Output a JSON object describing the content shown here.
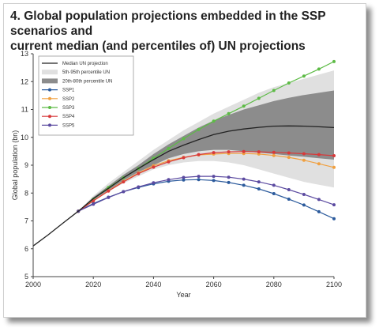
{
  "title": {
    "line1": "4. Global population projections embedded in the SSP scenarios and",
    "line2": "current median (and percentiles of) UN projections"
  },
  "chart_data": {
    "type": "line",
    "xlabel": "Year",
    "ylabel": "Global population (bn)",
    "xlim": [
      2000,
      2100
    ],
    "ylim": [
      5,
      13
    ],
    "x_ticks": [
      "2000",
      "2020",
      "2040",
      "2060",
      "2080",
      "2100"
    ],
    "y_ticks": [
      "5",
      "6",
      "7",
      "8",
      "9",
      "10",
      "11",
      "12",
      "13"
    ],
    "grid": false,
    "legend_position": "top-left",
    "un_median": {
      "name": "Median UN projection",
      "color": "#222222",
      "x": [
        2000,
        2005,
        2010,
        2015,
        2020,
        2025,
        2030,
        2035,
        2040,
        2045,
        2050,
        2055,
        2060,
        2065,
        2070,
        2075,
        2080,
        2085,
        2090,
        2095,
        2100
      ],
      "y": [
        6.1,
        6.5,
        6.93,
        7.35,
        7.8,
        8.17,
        8.55,
        8.88,
        9.2,
        9.5,
        9.72,
        9.92,
        10.1,
        10.22,
        10.3,
        10.36,
        10.4,
        10.41,
        10.4,
        10.38,
        10.35
      ]
    },
    "band_5_95": {
      "name": "5th-95th percentile UN",
      "color": "#e0e0e0",
      "x": [
        2015,
        2020,
        2025,
        2030,
        2035,
        2040,
        2045,
        2050,
        2055,
        2060,
        2065,
        2070,
        2075,
        2080,
        2085,
        2090,
        2095,
        2100
      ],
      "lower": [
        7.35,
        7.7,
        8.05,
        8.35,
        8.6,
        8.85,
        9.0,
        9.1,
        9.15,
        9.15,
        9.1,
        9.0,
        8.85,
        8.7,
        8.55,
        8.4,
        8.3,
        8.2
      ],
      "upper": [
        7.35,
        7.9,
        8.35,
        8.75,
        9.15,
        9.55,
        9.9,
        10.25,
        10.55,
        10.85,
        11.1,
        11.35,
        11.6,
        11.8,
        11.95,
        12.1,
        12.25,
        12.4
      ]
    },
    "band_20_80": {
      "name": "20th-80th percentile UN",
      "color": "#8c8c8c",
      "x": [
        2015,
        2020,
        2025,
        2030,
        2035,
        2040,
        2045,
        2050,
        2055,
        2060,
        2065,
        2070,
        2075,
        2080,
        2085,
        2090,
        2095,
        2100
      ],
      "lower": [
        7.35,
        7.75,
        8.1,
        8.45,
        8.75,
        9.0,
        9.25,
        9.4,
        9.5,
        9.55,
        9.55,
        9.5,
        9.45,
        9.4,
        9.35,
        9.3,
        9.25,
        9.2
      ],
      "upper": [
        7.35,
        7.85,
        8.25,
        8.65,
        9.0,
        9.4,
        9.75,
        10.05,
        10.35,
        10.6,
        10.8,
        11.0,
        11.15,
        11.3,
        11.42,
        11.52,
        11.6,
        11.68
      ]
    },
    "series": [
      {
        "name": "SSP1",
        "color": "#2b5a9c",
        "x": [
          2015,
          2020,
          2025,
          2030,
          2035,
          2040,
          2045,
          2050,
          2055,
          2060,
          2065,
          2070,
          2075,
          2080,
          2085,
          2090,
          2095,
          2100
        ],
        "y": [
          7.35,
          7.62,
          7.85,
          8.05,
          8.2,
          8.33,
          8.42,
          8.47,
          8.48,
          8.45,
          8.38,
          8.28,
          8.15,
          7.98,
          7.78,
          7.57,
          7.33,
          7.08
        ]
      },
      {
        "name": "SSP2",
        "color": "#f0a040",
        "x": [
          2015,
          2020,
          2025,
          2030,
          2035,
          2040,
          2045,
          2050,
          2055,
          2060,
          2065,
          2070,
          2075,
          2080,
          2085,
          2090,
          2095,
          2100
        ],
        "y": [
          7.35,
          7.72,
          8.08,
          8.42,
          8.72,
          8.98,
          9.16,
          9.28,
          9.37,
          9.4,
          9.42,
          9.42,
          9.4,
          9.35,
          9.28,
          9.18,
          9.05,
          8.92
        ]
      },
      {
        "name": "SSP3",
        "color": "#5dbb46",
        "x": [
          2015,
          2020,
          2025,
          2030,
          2035,
          2040,
          2045,
          2050,
          2055,
          2060,
          2065,
          2070,
          2075,
          2080,
          2085,
          2090,
          2095,
          2100
        ],
        "y": [
          7.35,
          7.78,
          8.2,
          8.55,
          8.88,
          9.25,
          9.6,
          9.95,
          10.28,
          10.58,
          10.85,
          11.12,
          11.4,
          11.68,
          11.95,
          12.2,
          12.45,
          12.72
        ]
      },
      {
        "name": "SSP4",
        "color": "#d8393a",
        "x": [
          2015,
          2020,
          2025,
          2030,
          2035,
          2040,
          2045,
          2050,
          2055,
          2060,
          2065,
          2070,
          2075,
          2080,
          2085,
          2090,
          2095,
          2100
        ],
        "y": [
          7.35,
          7.72,
          8.07,
          8.4,
          8.7,
          8.93,
          9.12,
          9.27,
          9.38,
          9.45,
          9.48,
          9.49,
          9.48,
          9.46,
          9.44,
          9.41,
          9.38,
          9.34
        ]
      },
      {
        "name": "SSP5",
        "color": "#5b4aa0",
        "x": [
          2015,
          2020,
          2025,
          2030,
          2035,
          2040,
          2045,
          2050,
          2055,
          2060,
          2065,
          2070,
          2075,
          2080,
          2085,
          2090,
          2095,
          2100
        ],
        "y": [
          7.35,
          7.6,
          7.84,
          8.05,
          8.22,
          8.37,
          8.48,
          8.56,
          8.6,
          8.6,
          8.57,
          8.5,
          8.4,
          8.28,
          8.12,
          7.95,
          7.77,
          7.58
        ]
      }
    ]
  }
}
